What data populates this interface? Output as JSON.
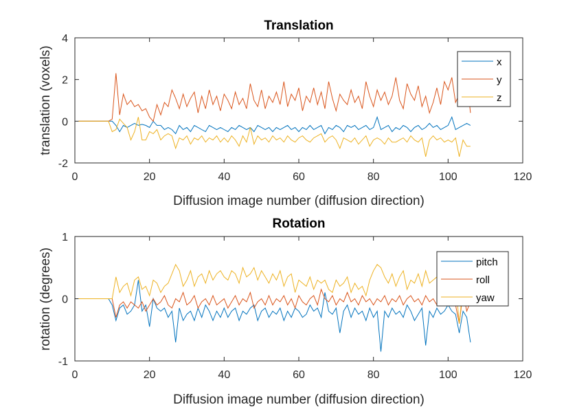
{
  "chart_data": [
    {
      "type": "line",
      "title": "Translation",
      "xlabel": "Diffusion image number (diffusion direction)",
      "ylabel": "translation (voxels)",
      "xlim": [
        0,
        120
      ],
      "ylim": [
        -2,
        4
      ],
      "xticks": [
        "0",
        "20",
        "40",
        "60",
        "80",
        "100",
        "120"
      ],
      "yticks": [
        "4",
        "2",
        "0",
        "-2"
      ],
      "legend_position": "top-right",
      "x": [
        1,
        2,
        3,
        4,
        5,
        6,
        7,
        8,
        9,
        10,
        11,
        12,
        13,
        14,
        15,
        16,
        17,
        18,
        19,
        20,
        21,
        22,
        23,
        24,
        25,
        26,
        27,
        28,
        29,
        30,
        31,
        32,
        33,
        34,
        35,
        36,
        37,
        38,
        39,
        40,
        41,
        42,
        43,
        44,
        45,
        46,
        47,
        48,
        49,
        50,
        51,
        52,
        53,
        54,
        55,
        56,
        57,
        58,
        59,
        60,
        61,
        62,
        63,
        64,
        65,
        66,
        67,
        68,
        69,
        70,
        71,
        72,
        73,
        74,
        75,
        76,
        77,
        78,
        79,
        80,
        81,
        82,
        83,
        84,
        85,
        86,
        87,
        88,
        89,
        90,
        91,
        92,
        93,
        94,
        95,
        96,
        97,
        98,
        99,
        100,
        101,
        102,
        103,
        104,
        105,
        106
      ],
      "series": [
        {
          "name": "x",
          "color": "#0072BD",
          "values": [
            0,
            0,
            0,
            0,
            0,
            0,
            0,
            0,
            0,
            0,
            -0.2,
            -0.5,
            -0.2,
            -0.3,
            -0.2,
            -0.1,
            -0.2,
            -0.15,
            -0.2,
            -0.3,
            0,
            -0.2,
            -0.2,
            -0.4,
            -0.3,
            -0.4,
            -0.6,
            -0.2,
            -0.4,
            -0.3,
            -0.5,
            -0.2,
            -0.3,
            -0.4,
            -0.5,
            -0.2,
            -0.3,
            -0.4,
            -0.3,
            -0.4,
            -0.5,
            -0.3,
            -0.4,
            -0.2,
            -0.3,
            -0.4,
            -0.3,
            -0.5,
            -0.2,
            -0.3,
            -0.4,
            -0.3,
            -0.5,
            -0.3,
            -0.4,
            -0.3,
            -0.2,
            -0.4,
            -0.3,
            -0.5,
            -0.3,
            -0.4,
            -0.2,
            -0.4,
            -0.3,
            -0.2,
            -0.6,
            -0.3,
            -0.4,
            -0.2,
            -0.3,
            -0.5,
            -0.2,
            -0.3,
            -0.2,
            -0.4,
            -0.3,
            -0.2,
            -0.4,
            -0.3,
            0.2,
            -0.4,
            -0.3,
            -0.2,
            -0.5,
            -0.3,
            -0.4,
            -0.2,
            -0.3,
            -0.5,
            -0.3,
            -0.2,
            -0.4,
            -0.3,
            -0.1,
            -0.3,
            -0.2,
            -0.4,
            -0.3,
            -0.2,
            0.2,
            -0.4,
            -0.3,
            -0.2,
            -0.1,
            -0.2
          ]
        },
        {
          "name": "y",
          "color": "#D95319",
          "values": [
            0,
            0,
            0,
            0,
            0,
            0,
            0,
            0,
            0,
            0.1,
            2.3,
            0.3,
            1.3,
            0.8,
            1.0,
            0.7,
            0.8,
            0.5,
            0.6,
            0.2,
            0.0,
            0.8,
            0.3,
            0.9,
            0.7,
            1.5,
            1.1,
            0.6,
            1.3,
            0.7,
            1.1,
            1.4,
            0.4,
            1.2,
            0.6,
            1.5,
            0.8,
            1.2,
            0.5,
            1.3,
            1.0,
            0.6,
            1.4,
            0.8,
            1.1,
            0.6,
            1.8,
            1.0,
            0.7,
            1.5,
            0.6,
            1.2,
            0.9,
            1.4,
            0.8,
            1.9,
            0.7,
            1.3,
            1.0,
            1.6,
            0.5,
            1.2,
            0.9,
            1.6,
            0.8,
            1.4,
            0.6,
            1.9,
            1.1,
            0.5,
            1.3,
            1.0,
            0.8,
            1.5,
            0.9,
            1.2,
            0.6,
            1.9,
            1.2,
            0.7,
            1.5,
            1.0,
            1.4,
            0.8,
            1.2,
            2.1,
            1.0,
            0.6,
            1.8,
            1.3,
            1.0,
            1.7,
            0.7,
            1.2,
            0.4,
            0.9,
            1.6,
            0.8,
            1.9,
            1.5,
            2.1,
            0.9,
            1.3,
            0.7,
            2.1,
            0.4
          ]
        },
        {
          "name": "z",
          "color": "#EDB120",
          "values": [
            0,
            0,
            0,
            0,
            0,
            0,
            0,
            0,
            0,
            -0.5,
            -0.4,
            0.1,
            -0.1,
            -0.3,
            -0.9,
            -0.5,
            0.2,
            -0.9,
            -0.9,
            -0.5,
            -0.6,
            -0.4,
            -0.9,
            -0.7,
            -0.6,
            -0.7,
            -1.3,
            -0.8,
            -0.9,
            -0.7,
            -1.1,
            -0.8,
            -0.9,
            -0.7,
            -1.0,
            -0.8,
            -0.9,
            -0.7,
            -1.0,
            -0.8,
            -1.0,
            -0.7,
            -0.9,
            -1.2,
            -0.7,
            -1.0,
            -0.3,
            -1.1,
            -0.7,
            -0.9,
            -0.8,
            -1.0,
            -0.7,
            -0.9,
            -0.8,
            -1.0,
            -0.7,
            -0.9,
            -1.0,
            -0.8,
            -0.7,
            -0.9,
            -1.0,
            -0.8,
            -0.7,
            -0.6,
            -1.0,
            -0.8,
            -0.7,
            -0.9,
            -1.3,
            -0.8,
            -0.9,
            -1.0,
            -0.8,
            -1.1,
            -0.9,
            -0.7,
            -1.2,
            -0.9,
            -0.8,
            -0.9,
            -1.1,
            -0.8,
            -1.0,
            -1.0,
            -0.9,
            -0.8,
            -1.0,
            -0.7,
            -0.9,
            -1.0,
            -0.8,
            -1.7,
            -0.9,
            -0.7,
            -0.9,
            -0.8,
            -1.0,
            -0.9,
            -1.0,
            -0.8,
            -1.7,
            -0.9,
            -1.2,
            -1.2
          ]
        }
      ]
    },
    {
      "type": "line",
      "title": "Rotation",
      "xlabel": "Diffusion image number (diffusion direction)",
      "ylabel": "rotation (degrees)",
      "xlim": [
        0,
        120
      ],
      "ylim": [
        -1,
        1
      ],
      "xticks": [
        "0",
        "20",
        "40",
        "60",
        "80",
        "100",
        "120"
      ],
      "yticks": [
        "1",
        "0",
        "-1"
      ],
      "legend_position": "top-right",
      "x": [
        1,
        2,
        3,
        4,
        5,
        6,
        7,
        8,
        9,
        10,
        11,
        12,
        13,
        14,
        15,
        16,
        17,
        18,
        19,
        20,
        21,
        22,
        23,
        24,
        25,
        26,
        27,
        28,
        29,
        30,
        31,
        32,
        33,
        34,
        35,
        36,
        37,
        38,
        39,
        40,
        41,
        42,
        43,
        44,
        45,
        46,
        47,
        48,
        49,
        50,
        51,
        52,
        53,
        54,
        55,
        56,
        57,
        58,
        59,
        60,
        61,
        62,
        63,
        64,
        65,
        66,
        67,
        68,
        69,
        70,
        71,
        72,
        73,
        74,
        75,
        76,
        77,
        78,
        79,
        80,
        81,
        82,
        83,
        84,
        85,
        86,
        87,
        88,
        89,
        90,
        91,
        92,
        93,
        94,
        95,
        96,
        97,
        98,
        99,
        100,
        101,
        102,
        103,
        104,
        105,
        106
      ],
      "series": [
        {
          "name": "pitch",
          "color": "#0072BD",
          "values": [
            0,
            0,
            0,
            0,
            0,
            0,
            0,
            0,
            0,
            -0.1,
            -0.35,
            -0.15,
            -0.1,
            -0.25,
            -0.2,
            -0.1,
            0.3,
            -0.2,
            -0.1,
            -0.45,
            0.0,
            -0.15,
            -0.2,
            -0.15,
            -0.3,
            -0.2,
            -0.7,
            -0.15,
            -0.35,
            -0.25,
            -0.2,
            -0.35,
            -0.15,
            -0.3,
            -0.1,
            -0.2,
            -0.35,
            -0.2,
            -0.3,
            -0.15,
            -0.3,
            -0.2,
            -0.15,
            -0.35,
            -0.2,
            -0.25,
            -0.15,
            -0.1,
            -0.35,
            -0.2,
            -0.15,
            -0.3,
            -0.2,
            -0.25,
            -0.15,
            -0.35,
            -0.2,
            -0.3,
            -0.15,
            -0.2,
            -0.3,
            -0.25,
            -0.1,
            -0.2,
            -0.15,
            -0.3,
            0.1,
            -0.2,
            -0.25,
            -0.15,
            -0.55,
            -0.2,
            -0.1,
            -0.3,
            -0.15,
            -0.25,
            -0.2,
            -0.35,
            -0.15,
            -0.3,
            -0.2,
            -0.85,
            -0.2,
            -0.3,
            -0.15,
            -0.25,
            -0.2,
            -0.3,
            -0.1,
            -0.2,
            -0.35,
            -0.25,
            -0.15,
            -0.75,
            -0.2,
            -0.3,
            -0.15,
            -0.25,
            -0.2,
            -0.1,
            -0.2,
            -0.25,
            -0.55,
            -0.2,
            -0.3,
            -0.7
          ]
        },
        {
          "name": "roll",
          "color": "#D95319",
          "values": [
            0,
            0,
            0,
            0,
            0,
            0,
            0,
            0,
            0,
            0,
            -0.3,
            -0.1,
            -0.05,
            -0.15,
            -0.05,
            -0.1,
            -0.15,
            -0.05,
            -0.2,
            -0.1,
            0.0,
            -0.1,
            -0.05,
            0.05,
            -0.1,
            -0.15,
            0.0,
            -0.05,
            0.1,
            -0.1,
            -0.05,
            0.05,
            -0.15,
            -0.05,
            0.0,
            -0.1,
            0.05,
            -0.1,
            -0.05,
            0.0,
            -0.15,
            -0.05,
            0.05,
            -0.1,
            0.0,
            -0.05,
            0.1,
            -0.15,
            -0.05,
            0.0,
            -0.1,
            0.05,
            -0.1,
            0.0,
            -0.05,
            0.05,
            -0.1,
            0.0,
            -0.15,
            0.05,
            -0.05,
            -0.1,
            0.0,
            0.05,
            -0.1,
            0.15,
            0.0,
            -0.05,
            0.05,
            -0.1,
            0.0,
            -0.05,
            0.1,
            -0.05,
            0.0,
            -0.1,
            0.05,
            -0.05,
            0.0,
            -0.1,
            0.0,
            -0.05,
            0.05,
            -0.1,
            0.0,
            -0.05,
            0.05,
            -0.1,
            0.0,
            0.05,
            -0.05,
            0.0,
            -0.1,
            0.05,
            -0.05,
            0.0,
            -0.1,
            0.05,
            0.1,
            0.0,
            -0.05,
            -0.1,
            -0.4,
            0.1,
            -0.2,
            -0.05
          ]
        },
        {
          "name": "yaw",
          "color": "#EDB120",
          "values": [
            0,
            0,
            0,
            0,
            0,
            0,
            0,
            0,
            0,
            0,
            0.35,
            0.1,
            0.2,
            0.25,
            0.05,
            0.3,
            0.35,
            0.15,
            0.2,
            0.05,
            0.3,
            0.25,
            0.1,
            0.2,
            0.25,
            0.4,
            0.55,
            0.45,
            0.2,
            0.3,
            0.45,
            0.2,
            0.35,
            0.4,
            0.25,
            0.45,
            0.3,
            0.4,
            0.45,
            0.35,
            0.3,
            0.45,
            0.4,
            0.25,
            0.5,
            0.35,
            0.4,
            0.5,
            0.3,
            0.45,
            0.35,
            0.25,
            0.4,
            0.3,
            0.45,
            0.2,
            0.35,
            0.4,
            0.1,
            0.3,
            0.25,
            0.2,
            0.35,
            0.15,
            0.3,
            0.25,
            0.3,
            0.15,
            0.1,
            0.3,
            0.2,
            0.25,
            0.35,
            0.1,
            0.25,
            0.15,
            0.2,
            0.05,
            0.3,
            0.45,
            0.55,
            0.5,
            0.35,
            0.25,
            0.4,
            0.2,
            0.35,
            0.45,
            0.15,
            0.3,
            0.25,
            0.4,
            0.2,
            0.45,
            0.25,
            0.3,
            0.35,
            0.4,
            0.2,
            0.15,
            0.3,
            0.25,
            -0.4,
            0.2,
            0.25,
            0.35
          ]
        }
      ]
    }
  ]
}
